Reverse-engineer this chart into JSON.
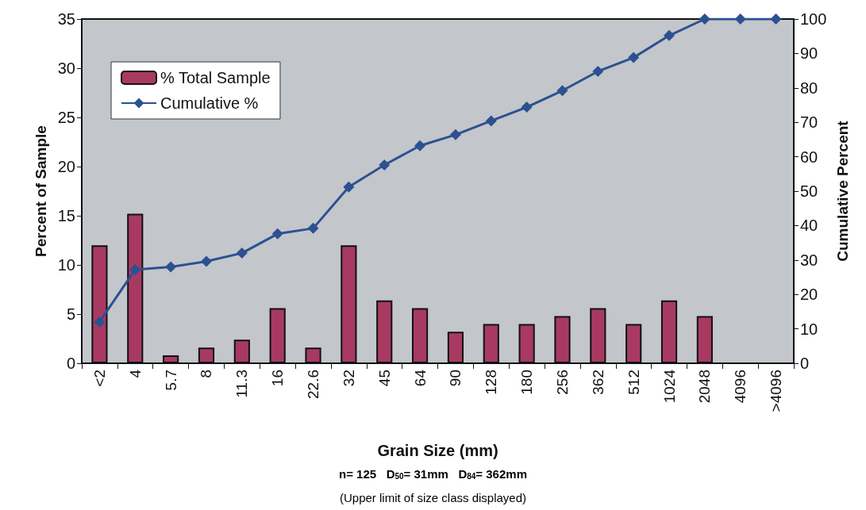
{
  "chart_data": {
    "type": "bar",
    "xlabel": "Grain Size (mm)",
    "ylabel": "Percent of Sample",
    "y2label": "Cumulative Percent",
    "categories": [
      "<2",
      "4",
      "5.7",
      "8",
      "11.3",
      "16",
      "22.6",
      "32",
      "45",
      "64",
      "90",
      "128",
      "180",
      "256",
      "362",
      "512",
      "1024",
      "2048",
      "4096",
      ">4096"
    ],
    "series": [
      {
        "name": "% Total Sample",
        "color": "#a83a62",
        "values": [
          12,
          15.2,
          0.8,
          1.6,
          2.4,
          5.6,
          1.6,
          12,
          6.4,
          5.6,
          3.2,
          4,
          4,
          4.8,
          5.6,
          4,
          6.4,
          4.8,
          0,
          0
        ]
      },
      {
        "name": "Cumulative %",
        "type": "line",
        "axis": "y2",
        "color": "#2c5190",
        "marker": "diamond",
        "values": [
          12,
          27.2,
          28,
          29.6,
          32,
          37.6,
          39.2,
          51.2,
          57.6,
          63.2,
          66.4,
          70.4,
          74.4,
          79.2,
          84.8,
          88.8,
          95.2,
          100,
          100,
          100
        ]
      }
    ],
    "ylim": [
      0,
      35
    ],
    "yticks": [
      0,
      5,
      10,
      15,
      20,
      25,
      30,
      35
    ],
    "y2lim": [
      0,
      100
    ],
    "y2ticks": [
      0,
      10,
      20,
      30,
      40,
      50,
      60,
      70,
      80,
      90,
      100
    ],
    "grid": false,
    "legend": "top left",
    "annotations": [
      "n= 125   D$_{50}$= 31mm   D$_{84}$= 362mm",
      "(Upper limit of size class displayed)"
    ]
  }
}
